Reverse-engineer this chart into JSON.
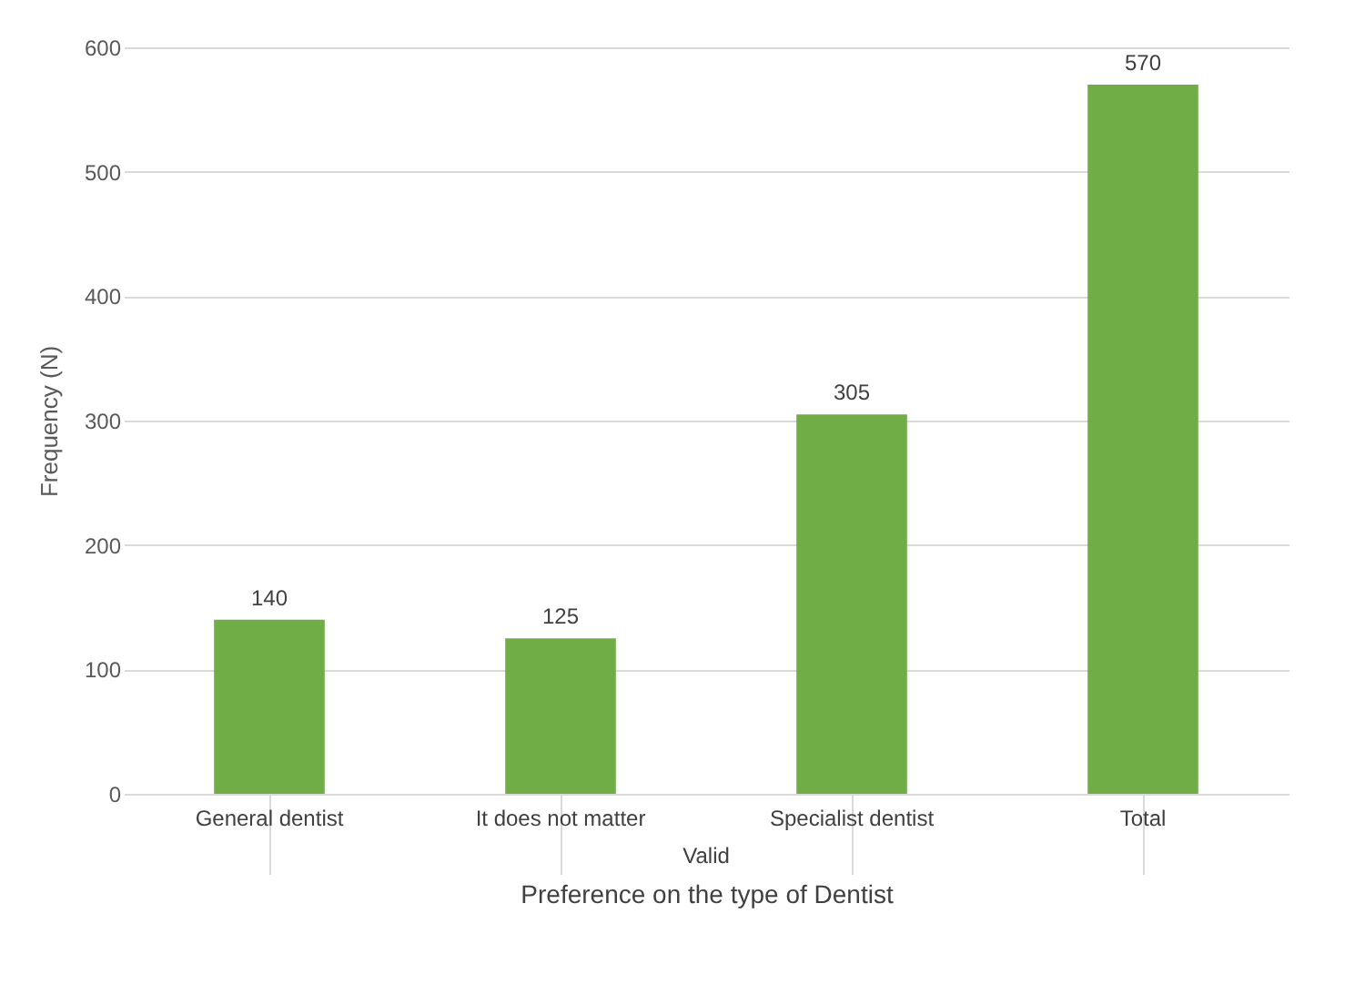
{
  "chart_data": {
    "type": "bar",
    "xlabel": "Preference on the type of Dentist",
    "ylabel": "Frequency (N)",
    "categories": [
      "General dentist",
      "It does not matter",
      "Specialist dentist",
      "Total"
    ],
    "values": [
      140,
      125,
      305,
      570
    ],
    "color": "#70ad47",
    "ylim": [
      0,
      600
    ],
    "yticks": [
      0,
      100,
      200,
      300,
      400,
      500,
      600
    ],
    "grid": "y",
    "data_labels": true,
    "annotations": [
      "Valid"
    ]
  }
}
